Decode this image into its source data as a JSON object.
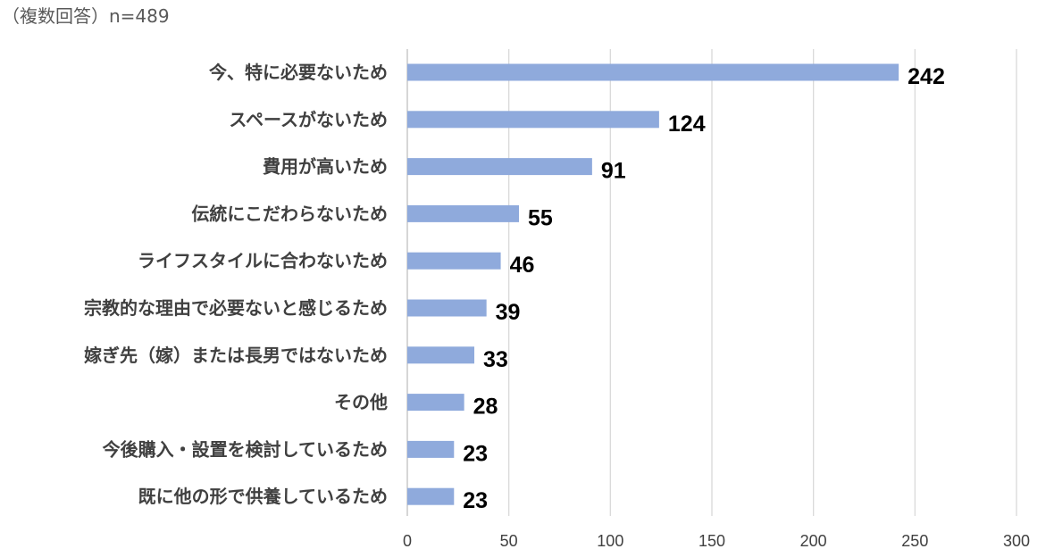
{
  "note": "（複数回答）n=489",
  "colors": {
    "bar": "#8faadc",
    "grid": "#d9d9d9"
  },
  "chart_data": {
    "type": "bar",
    "orientation": "horizontal",
    "categories": [
      "今、特に必要ないため",
      "スペースがないため",
      "費用が高いため",
      "伝統にこだわらないため",
      "ライフスタイルに合わないため",
      "宗教的な理由で必要ないと感じるため",
      "嫁ぎ先（嫁）または長男ではないため",
      "その他",
      "今後購入・設置を検討しているため",
      "既に他の形で供養しているため"
    ],
    "values": [
      242,
      124,
      91,
      55,
      46,
      39,
      33,
      28,
      23,
      23
    ],
    "xlim": [
      0,
      300
    ],
    "xticks": [
      0,
      50,
      100,
      150,
      200,
      250,
      300
    ],
    "grid": true,
    "legend": "none"
  }
}
